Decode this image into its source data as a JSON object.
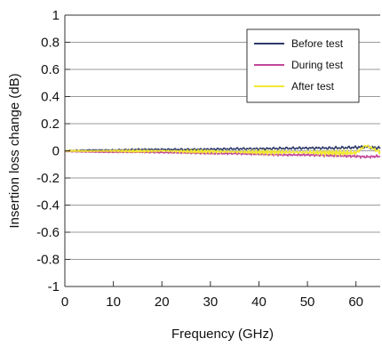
{
  "chart_data": {
    "type": "line",
    "title": "",
    "xlabel": "Frequency (GHz)",
    "ylabel": "Insertion loss change (dB)",
    "xlim": [
      0,
      65
    ],
    "ylim": [
      -1,
      1
    ],
    "xticks": [
      0,
      10,
      20,
      30,
      40,
      50,
      60
    ],
    "xtick_labels": [
      "0",
      "10",
      "20",
      "30",
      "40",
      "50",
      "60"
    ],
    "yticks": [
      1,
      0.8,
      0.6,
      0.4,
      0.2,
      0,
      -0.2,
      -0.4,
      -0.6,
      -0.8,
      -1
    ],
    "ytick_labels": [
      "1",
      "0.8",
      "0.6",
      "0.4",
      "0.2",
      "0",
      "-0.2",
      "-0.4",
      "-0.6",
      "-0.8",
      "-1"
    ],
    "grid": "horizontal",
    "legend_position": "top-right",
    "series": [
      {
        "name": "Before test",
        "color": "#2e3a6b",
        "x": [
          0,
          5,
          10,
          15,
          20,
          25,
          30,
          35,
          40,
          45,
          50,
          55,
          60,
          62,
          65
        ],
        "y": [
          0.0,
          0.005,
          0.005,
          0.01,
          0.01,
          0.01,
          0.012,
          0.015,
          0.015,
          0.018,
          0.02,
          0.02,
          0.025,
          0.03,
          0.02
        ]
      },
      {
        "name": "During test",
        "color": "#c0479a",
        "x": [
          0,
          5,
          10,
          15,
          20,
          25,
          30,
          35,
          40,
          45,
          50,
          55,
          60,
          62,
          65
        ],
        "y": [
          -0.005,
          -0.008,
          -0.01,
          -0.01,
          -0.012,
          -0.015,
          -0.02,
          -0.02,
          -0.025,
          -0.03,
          -0.03,
          -0.035,
          -0.04,
          -0.045,
          -0.04
        ]
      },
      {
        "name": "After test",
        "color": "#f2e832",
        "x": [
          0,
          5,
          10,
          15,
          20,
          25,
          30,
          35,
          40,
          45,
          50,
          55,
          60,
          62,
          65
        ],
        "y": [
          0.0,
          -0.002,
          0.0,
          -0.003,
          0.0,
          -0.005,
          -0.005,
          -0.008,
          -0.01,
          -0.01,
          -0.012,
          -0.015,
          -0.015,
          0.04,
          -0.01
        ]
      }
    ]
  }
}
